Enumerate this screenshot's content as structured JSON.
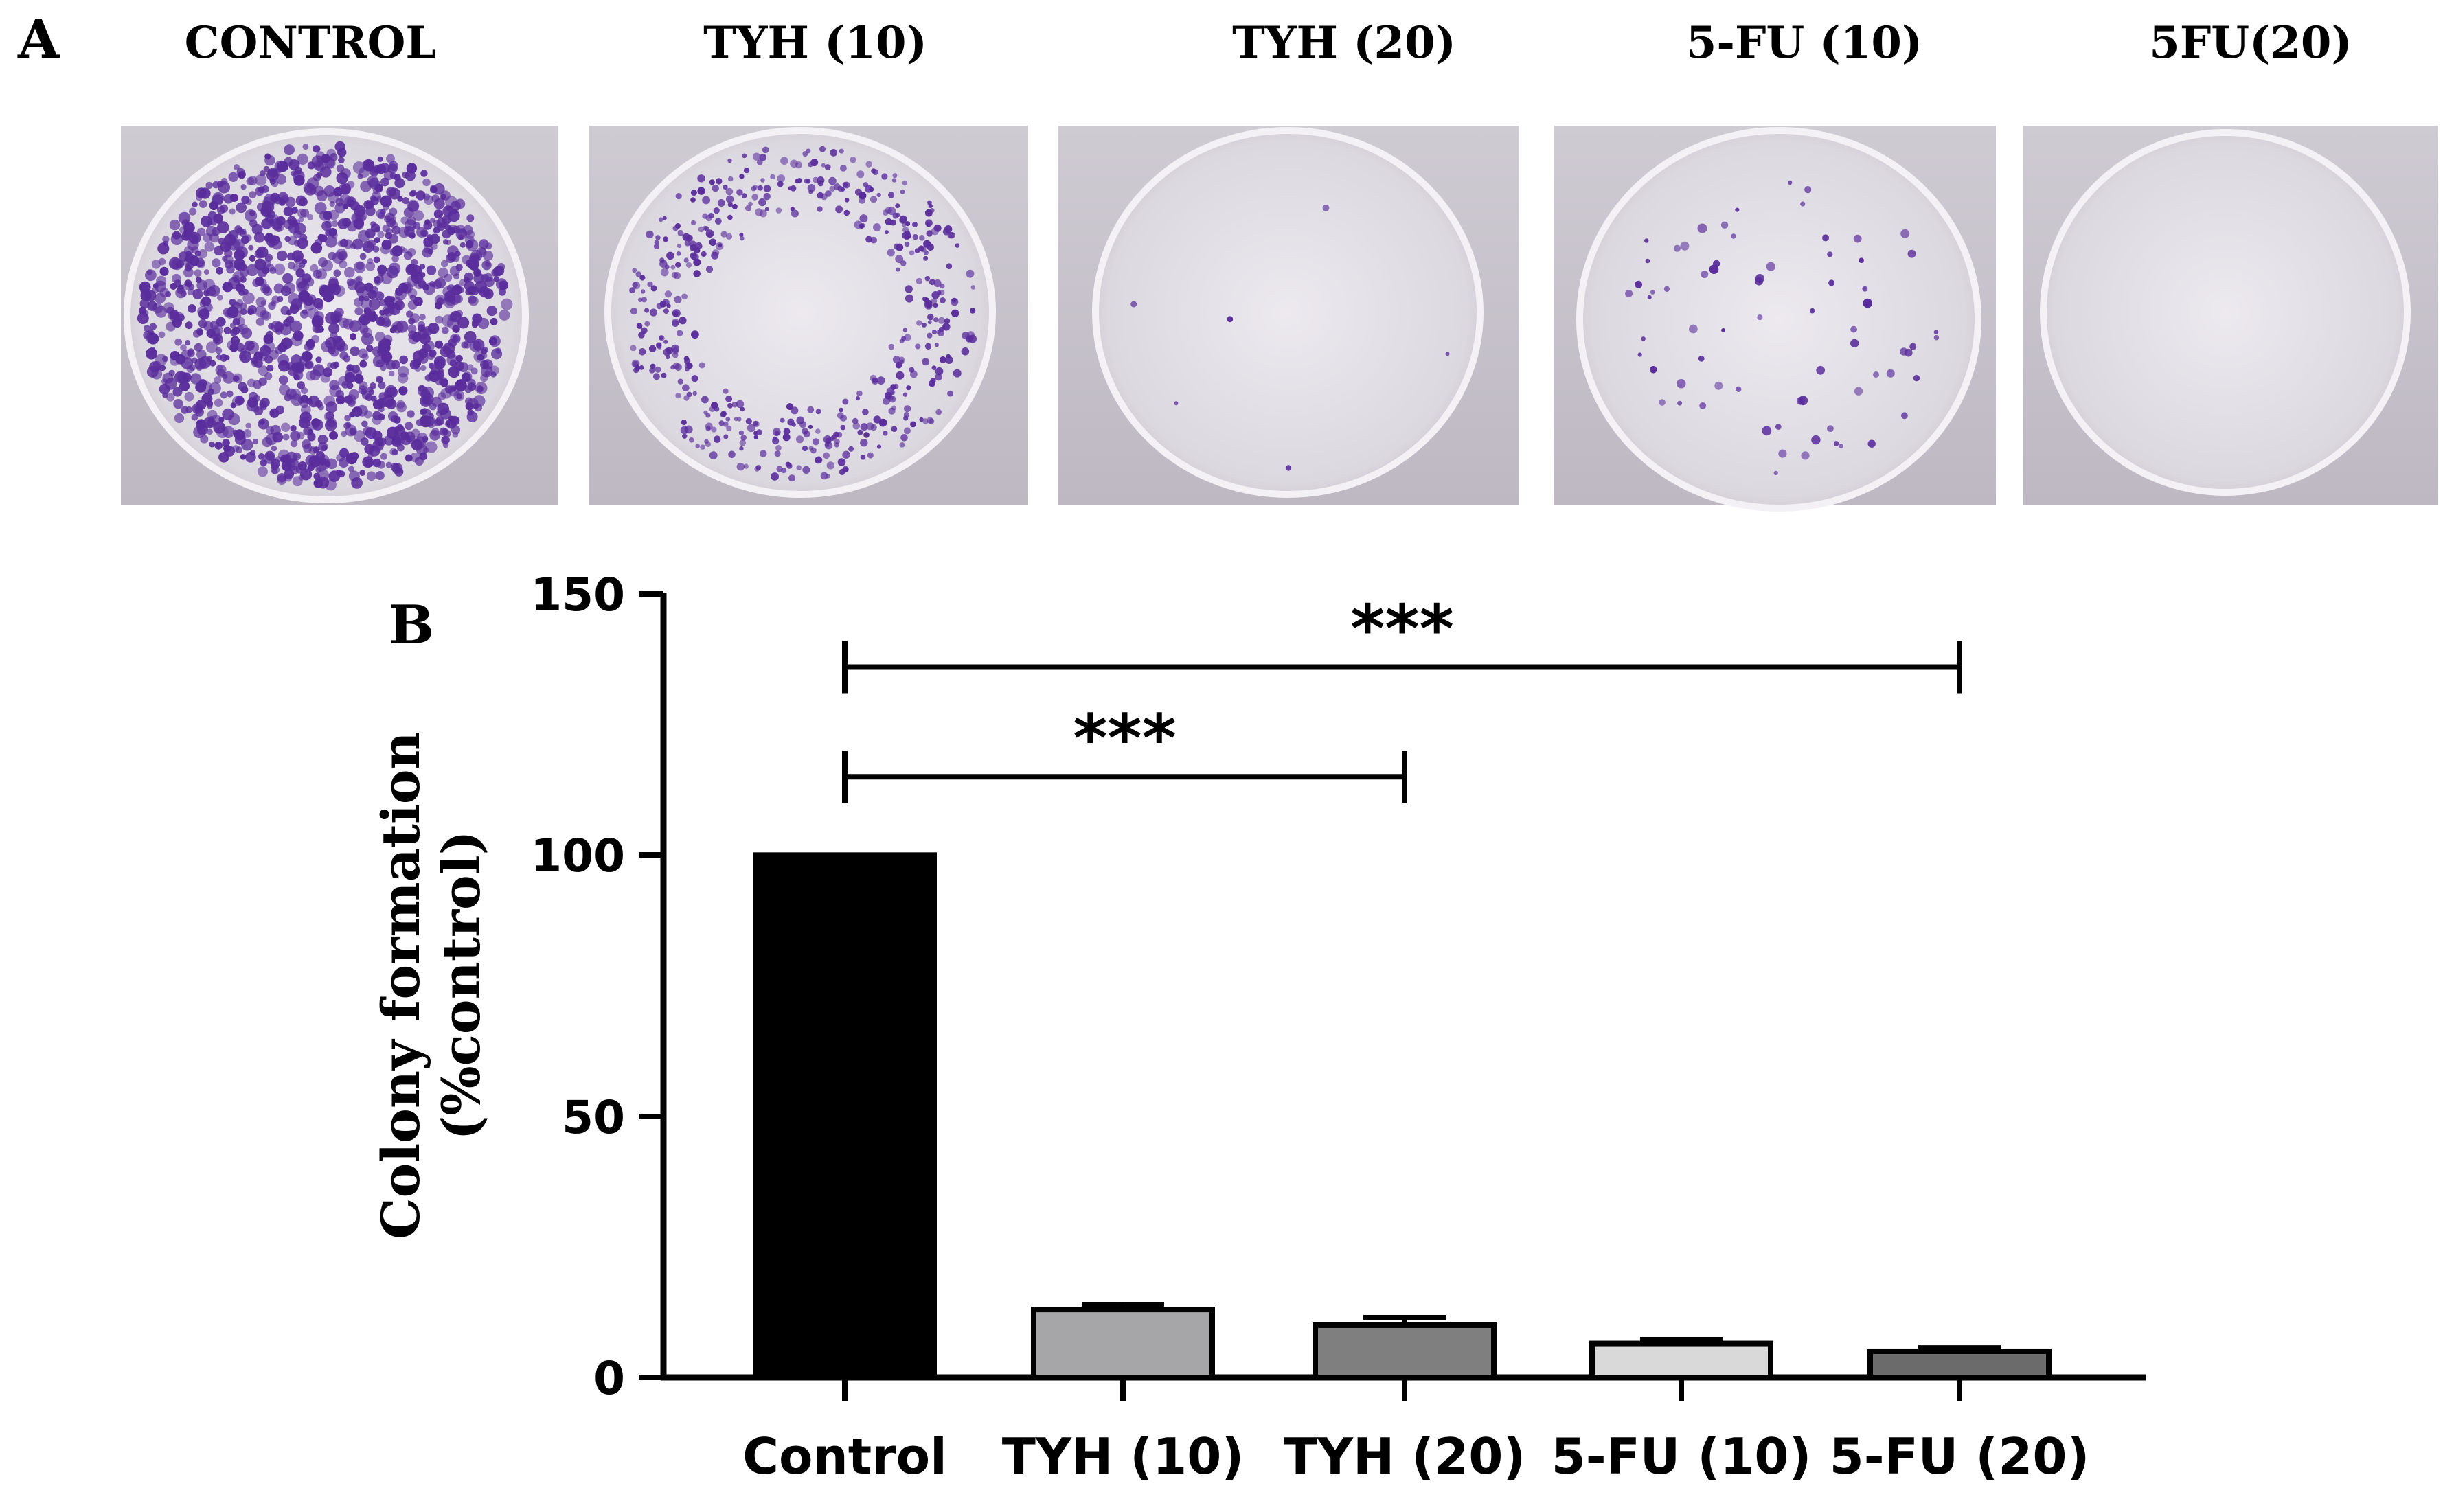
{
  "panel_a": {
    "letter": "A",
    "plates": [
      {
        "label": "CONTROL",
        "colony_density": "dense"
      },
      {
        "label": "TYH (10)",
        "colony_density": "sparse"
      },
      {
        "label": "TYH (20)",
        "colony_density": "few"
      },
      {
        "label": "5-FU (10)",
        "colony_density": "few"
      },
      {
        "label": "5FU(20)",
        "colony_density": "none"
      }
    ],
    "stain_color": "#5a2d9c"
  },
  "panel_b": {
    "letter": "B"
  },
  "chart_data": {
    "type": "bar",
    "title": "",
    "xlabel": "",
    "ylabel_line1": "Colony formation",
    "ylabel_line2": "(%control)",
    "ylim": [
      0,
      150
    ],
    "yticks": [
      0,
      50,
      100,
      150
    ],
    "categories": [
      "Control",
      "TYH (10)",
      "TYH (20)",
      "5-FU (10)",
      "5-FU (20)"
    ],
    "values": [
      100,
      13,
      10,
      6.5,
      5
    ],
    "errors": [
      0,
      1,
      1.5,
      0.8,
      0.7
    ],
    "bar_colors": [
      "#000000",
      "#a6a6a8",
      "#7f7f7f",
      "#d9d9d9",
      "#6b6b6b"
    ],
    "significance": [
      {
        "from": "Control",
        "to": "5-FU (20)",
        "label": "***",
        "y": 136
      },
      {
        "from": "Control",
        "to": "TYH (20)",
        "label": "***",
        "y": 115
      }
    ],
    "grid": false,
    "legend": "none"
  }
}
